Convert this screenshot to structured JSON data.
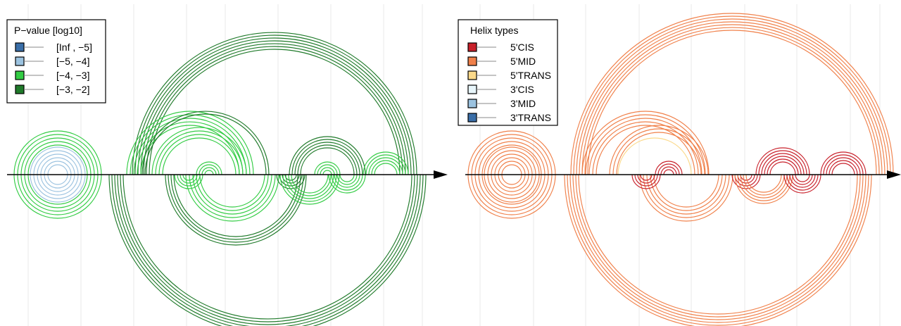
{
  "panels": [
    {
      "id": "pvalue",
      "legend": {
        "title": "P−value [log10]",
        "entries": [
          {
            "label": "[Inf , −5]",
            "fill": "#3a6ea8"
          },
          {
            "label": "[−5, −4]",
            "fill": "#9cc3e0"
          },
          {
            "label": "[−4, −3]",
            "fill": "#33cc44"
          },
          {
            "label": "[−3, −2]",
            "fill": "#1f7a2a"
          }
        ]
      }
    },
    {
      "id": "helix",
      "legend": {
        "title": "Helix types",
        "entries": [
          {
            "label": "5'CIS",
            "fill": "#c8202a"
          },
          {
            "label": "5'MID",
            "fill": "#f0804a"
          },
          {
            "label": "5'TRANS",
            "fill": "#fbd98a"
          },
          {
            "label": "3'CIS",
            "fill": "#e8f6fb"
          },
          {
            "label": "3'MID",
            "fill": "#9cc3e0"
          },
          {
            "label": "3'TRANS",
            "fill": "#3a6ea8"
          }
        ]
      }
    }
  ]
}
